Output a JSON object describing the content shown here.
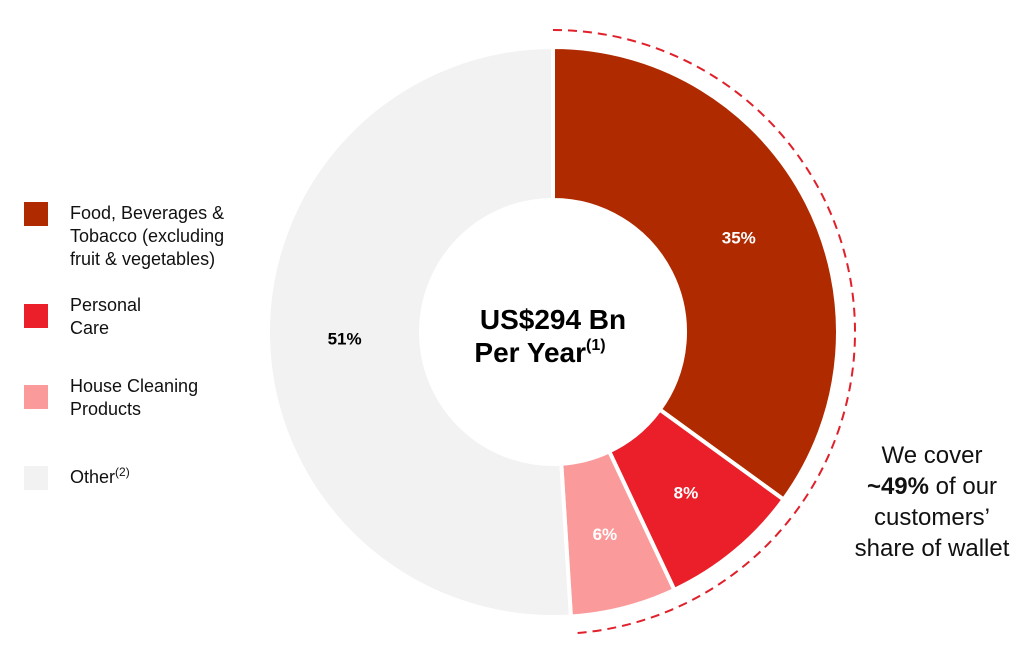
{
  "chart_data": {
    "type": "pie",
    "donut": true,
    "center_label": {
      "line1": "US$294 Bn",
      "line2": "Per Year",
      "line2_note": "(1)"
    },
    "slices": [
      {
        "label": "Food, Beverages & Tobacco (excluding fruit & vegetables)",
        "value": 35,
        "value_label": "35%",
        "color": "#b02a00"
      },
      {
        "label": "Personal Care",
        "value": 8,
        "value_label": "8%",
        "color": "#ea1f2a"
      },
      {
        "label": "House Cleaning Products",
        "value": 6,
        "value_label": "6%",
        "color": "#fb9a9a"
      },
      {
        "label": "Other",
        "label_note": "(2)",
        "value": 51,
        "value_label": "51%",
        "color": "#f2f2f2"
      }
    ],
    "legend_position": "left",
    "highlight": {
      "covered_slices": 3,
      "arc_color": "#e0202a",
      "arc_style": "dashed"
    }
  },
  "legend": {
    "items": [
      {
        "label": "Food, Beverages &\nTobacco (excluding\nfruit & vegetables)",
        "color": "#b02a00"
      },
      {
        "label": "Personal\nCare",
        "color": "#ea1f2a"
      },
      {
        "label": "House Cleaning\nProducts",
        "color": "#fb9a9a"
      },
      {
        "label": "Other",
        "note": "(2)",
        "color": "#f2f2f2"
      }
    ]
  },
  "callout": {
    "line1": "We cover",
    "bold": "~49%",
    "line2_rest": " of our",
    "line3": "customers’",
    "line4": "share of wallet"
  }
}
